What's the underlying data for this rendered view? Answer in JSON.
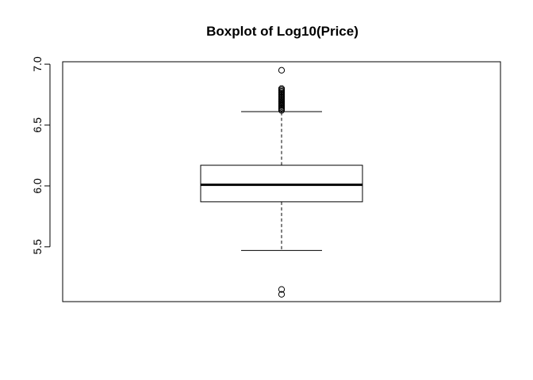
{
  "chart_data": {
    "type": "boxplot",
    "title": "Boxplot of Log10(Price)",
    "xlabel": "",
    "ylabel": "",
    "ylim": [
      5.05,
      7.02
    ],
    "yticks": [
      5.5,
      6.0,
      6.5,
      7.0
    ],
    "ytick_labels": [
      "5.5",
      "6.0",
      "6.5",
      "7.0"
    ],
    "box": {
      "q1": 5.87,
      "median": 6.01,
      "q3": 6.17,
      "whisker_low": 5.47,
      "whisker_high": 6.61
    },
    "outliers": [
      5.11,
      5.15,
      6.62,
      6.63,
      6.64,
      6.65,
      6.66,
      6.67,
      6.68,
      6.69,
      6.7,
      6.71,
      6.72,
      6.73,
      6.74,
      6.75,
      6.76,
      6.77,
      6.78,
      6.79,
      6.8,
      6.95
    ],
    "grid": false,
    "colors": {
      "stroke": "#000000",
      "background": "#ffffff"
    }
  }
}
